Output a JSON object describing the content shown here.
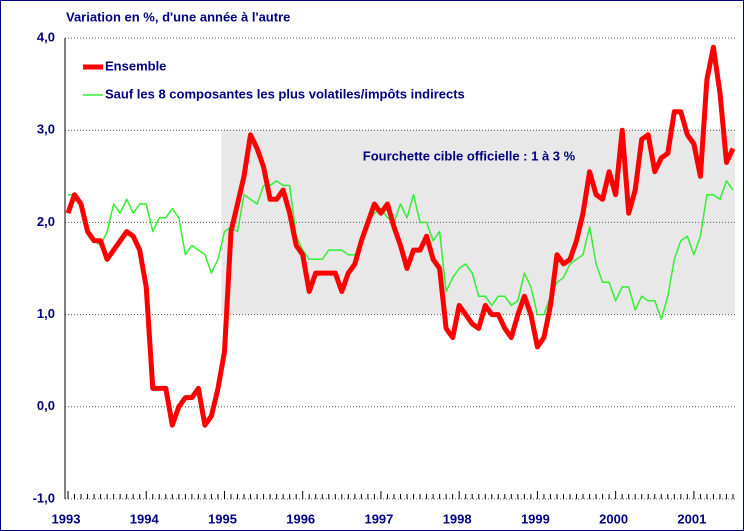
{
  "chart_data": {
    "type": "line",
    "title": "Variation en %, d'une année à l'autre",
    "categories": [
      "1993",
      null,
      null,
      null,
      null,
      null,
      null,
      null,
      null,
      null,
      null,
      null,
      "1994",
      null,
      null,
      null,
      null,
      null,
      null,
      null,
      null,
      null,
      null,
      null,
      "1995",
      null,
      null,
      null,
      null,
      null,
      null,
      null,
      null,
      null,
      null,
      null,
      "1996",
      null,
      null,
      null,
      null,
      null,
      null,
      null,
      null,
      null,
      null,
      null,
      "1997",
      null,
      null,
      null,
      null,
      null,
      null,
      null,
      null,
      null,
      null,
      null,
      "1998",
      null,
      null,
      null,
      null,
      null,
      null,
      null,
      null,
      null,
      null,
      null,
      "1999",
      null,
      null,
      null,
      null,
      null,
      null,
      null,
      null,
      null,
      null,
      null,
      "2000",
      null,
      null,
      null,
      null,
      null,
      null,
      null,
      null,
      null,
      null,
      null,
      "2001",
      null,
      null,
      null,
      null,
      null,
      null
    ],
    "series": [
      {
        "name": "Ensemble",
        "color": "#ff0000",
        "width": 5,
        "values": [
          2.1,
          2.3,
          2.2,
          1.9,
          1.8,
          1.8,
          1.6,
          1.7,
          1.8,
          1.9,
          1.85,
          1.7,
          1.3,
          0.2,
          0.2,
          0.2,
          -0.2,
          0.0,
          0.1,
          0.1,
          0.2,
          -0.2,
          -0.1,
          0.2,
          0.6,
          1.9,
          2.2,
          2.5,
          2.95,
          2.8,
          2.6,
          2.25,
          2.25,
          2.35,
          2.1,
          1.75,
          1.65,
          1.25,
          1.45,
          1.45,
          1.45,
          1.45,
          1.25,
          1.45,
          1.55,
          1.8,
          2.0,
          2.2,
          2.1,
          2.2,
          1.95,
          1.75,
          1.5,
          1.7,
          1.7,
          1.85,
          1.6,
          1.5,
          0.85,
          0.75,
          1.1,
          1.0,
          0.9,
          0.85,
          1.1,
          1.0,
          1.0,
          0.85,
          0.75,
          1.0,
          1.2,
          1.0,
          0.65,
          0.75,
          1.1,
          1.65,
          1.55,
          1.6,
          1.8,
          2.1,
          2.55,
          2.3,
          2.25,
          2.55,
          2.3,
          3.0,
          2.1,
          2.35,
          2.9,
          2.95,
          2.55,
          2.7,
          2.75,
          3.2,
          3.2,
          2.95,
          2.85,
          2.5,
          3.55,
          3.9,
          3.4,
          2.65,
          2.8
        ]
      },
      {
        "name": "Sauf les 8 composantes les plus volatiles/impôts indirects",
        "color": "#33ee33",
        "width": 1.5,
        "values": [
          2.3,
          2.3,
          2.2,
          1.9,
          1.8,
          1.75,
          1.9,
          2.2,
          2.1,
          2.25,
          2.1,
          2.2,
          2.2,
          1.9,
          2.05,
          2.05,
          2.15,
          2.05,
          1.65,
          1.75,
          1.7,
          1.65,
          1.45,
          1.6,
          1.9,
          1.95,
          1.9,
          2.3,
          2.25,
          2.2,
          2.4,
          2.4,
          2.45,
          2.4,
          2.4,
          1.85,
          1.7,
          1.6,
          1.6,
          1.6,
          1.7,
          1.7,
          1.7,
          1.65,
          1.65,
          1.75,
          2.0,
          2.1,
          2.15,
          2.05,
          2.0,
          2.2,
          2.05,
          2.3,
          2.0,
          2.0,
          1.8,
          1.9,
          1.25,
          1.4,
          1.5,
          1.55,
          1.45,
          1.2,
          1.2,
          1.1,
          1.2,
          1.2,
          1.1,
          1.15,
          1.45,
          1.3,
          1.0,
          1.0,
          1.2,
          1.35,
          1.4,
          1.55,
          1.6,
          1.65,
          1.95,
          1.55,
          1.35,
          1.35,
          1.15,
          1.3,
          1.3,
          1.05,
          1.2,
          1.15,
          1.15,
          0.95,
          1.2,
          1.6,
          1.8,
          1.85,
          1.65,
          1.85,
          2.3,
          2.3,
          2.25,
          2.45,
          2.35
        ]
      }
    ],
    "target_band": {
      "label": "Fourchette cible officielle : 1 à 3 %",
      "range": [
        1,
        3
      ],
      "start": "1995",
      "color": "#e8e8e8"
    },
    "ylim": [
      -1,
      4
    ],
    "yticks": [
      {
        "value": -1,
        "label": "-1,0"
      },
      {
        "value": 0,
        "label": "0,0"
      },
      {
        "value": 1,
        "label": "1,0"
      },
      {
        "value": 2,
        "label": "2,0"
      },
      {
        "value": 3,
        "label": "3,0"
      },
      {
        "value": 4,
        "label": "4,0"
      }
    ],
    "grid": true,
    "legend": "top-left"
  }
}
